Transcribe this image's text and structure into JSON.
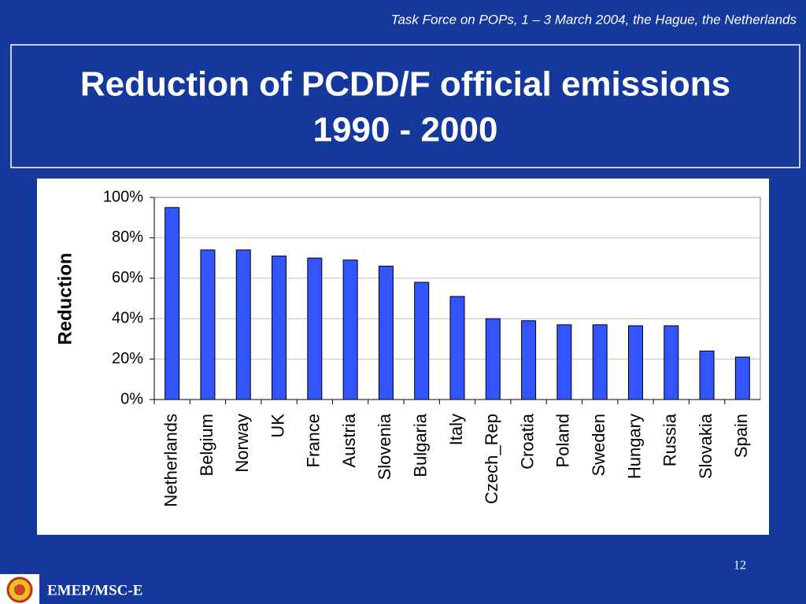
{
  "slide": {
    "header": "Task Force on POPs, 1 – 3 March 2004, the Hague, the Netherlands",
    "title": [
      "Reduction of PCDD/F official emissions",
      "1990 - 2000"
    ],
    "page": "12",
    "footer": "EMEP/MSC-E"
  },
  "chart_data": {
    "type": "bar",
    "ylabel": "Reduction",
    "categories": [
      "Netherlands",
      "Belgium",
      "Norway",
      "UK",
      "France",
      "Austria",
      "Slovenia",
      "Bulgaria",
      "Italy",
      "Czech_Rep",
      "Croatia",
      "Poland",
      "Sweden",
      "Hungary",
      "Russia",
      "Slovakia",
      "Spain"
    ],
    "values": [
      95,
      74,
      74,
      71,
      70,
      69,
      66,
      58,
      51,
      40,
      39,
      37,
      37,
      36.5,
      36.5,
      24,
      21
    ],
    "color": "#3355ff",
    "ylim": [
      0,
      100
    ],
    "yticks": [
      {
        "value": 0,
        "label": "0%"
      },
      {
        "value": 20,
        "label": "20%"
      },
      {
        "value": 40,
        "label": "40%"
      },
      {
        "value": 60,
        "label": "60%"
      },
      {
        "value": 80,
        "label": "80%"
      },
      {
        "value": 100,
        "label": "100%"
      }
    ],
    "grid": true
  }
}
